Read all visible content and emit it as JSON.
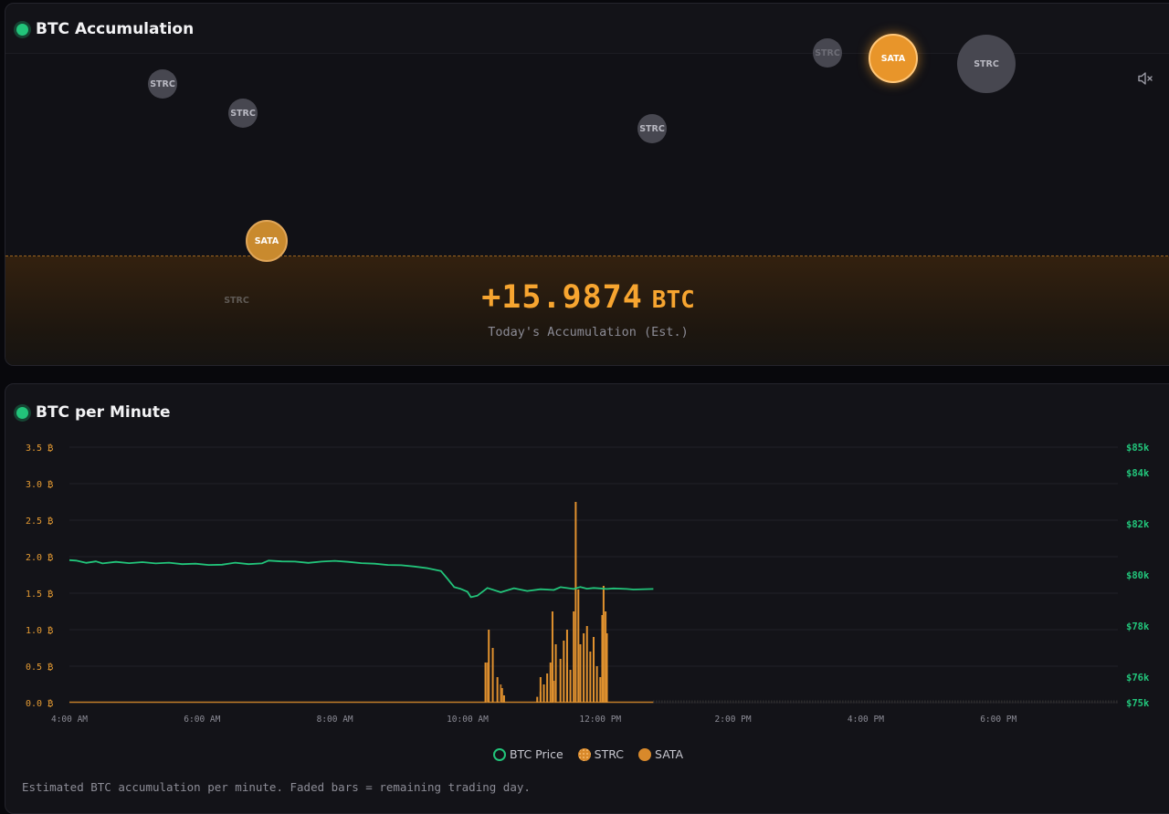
{
  "accumulation": {
    "title": "BTC Accumulation",
    "value": "+15.9874",
    "unit": "BTC",
    "label": "Today's Accumulation (Est.)",
    "bubbles": [
      {
        "label": "STRC",
        "kind": "strc"
      },
      {
        "label": "STRC",
        "kind": "strc"
      },
      {
        "label": "STRC",
        "kind": "strc"
      },
      {
        "label": "STRC",
        "kind": "strc"
      },
      {
        "label": "STRC",
        "kind": "strc"
      },
      {
        "label": "SATA",
        "kind": "sata"
      },
      {
        "label": "SATA",
        "kind": "sata"
      },
      {
        "label": "STRC",
        "kind": "ghost"
      }
    ]
  },
  "bpm": {
    "title": "BTC per Minute",
    "footnote": "Estimated BTC accumulation per minute. Faded bars = remaining trading day.",
    "legend": [
      "BTC Price",
      "STRC",
      "SATA"
    ]
  },
  "colors": {
    "accent_green": "#22c47a",
    "accent_orange": "#e59b33"
  },
  "chart_data": {
    "type": "bar",
    "title": "BTC per Minute",
    "y_left": {
      "ticks": [
        "0.0 ₿",
        "0.5 ₿",
        "1.0 ₿",
        "1.5 ₿",
        "2.0 ₿",
        "2.5 ₿",
        "3.0 ₿",
        "3.5 ₿"
      ],
      "ylim": [
        0,
        3.5
      ],
      "unit": "BTC"
    },
    "y_right": {
      "ticks": [
        "$75k",
        "$76k",
        "$78k",
        "$80k",
        "$82k",
        "$84k",
        "$85k"
      ],
      "ylim": [
        75000,
        85000
      ]
    },
    "x_axis": {
      "ticks": [
        "4:00 AM",
        "6:00 AM",
        "8:00 AM",
        "10:00 AM",
        "12:00 PM",
        "2:00 PM",
        "4:00 PM",
        "6:00 PM"
      ],
      "xlim_hours": [
        4,
        19.8
      ]
    },
    "grid": true,
    "legend_position": "bottom",
    "series": [
      {
        "name": "BTC Price",
        "kind": "line",
        "color": "#22c47a",
        "points": [
          [
            4.0,
            80580
          ],
          [
            4.1,
            80560
          ],
          [
            4.25,
            80470
          ],
          [
            4.4,
            80530
          ],
          [
            4.5,
            80450
          ],
          [
            4.7,
            80510
          ],
          [
            4.9,
            80460
          ],
          [
            5.1,
            80500
          ],
          [
            5.3,
            80450
          ],
          [
            5.5,
            80480
          ],
          [
            5.7,
            80420
          ],
          [
            5.9,
            80440
          ],
          [
            6.1,
            80390
          ],
          [
            6.3,
            80400
          ],
          [
            6.5,
            80480
          ],
          [
            6.7,
            80420
          ],
          [
            6.9,
            80450
          ],
          [
            7.0,
            80560
          ],
          [
            7.2,
            80530
          ],
          [
            7.4,
            80520
          ],
          [
            7.6,
            80470
          ],
          [
            7.8,
            80520
          ],
          [
            8.0,
            80550
          ],
          [
            8.2,
            80510
          ],
          [
            8.4,
            80460
          ],
          [
            8.6,
            80440
          ],
          [
            8.8,
            80390
          ],
          [
            9.0,
            80380
          ],
          [
            9.2,
            80330
          ],
          [
            9.4,
            80260
          ],
          [
            9.6,
            80150
          ],
          [
            9.7,
            79840
          ],
          [
            9.8,
            79520
          ],
          [
            9.9,
            79450
          ],
          [
            10.0,
            79340
          ],
          [
            10.05,
            79130
          ],
          [
            10.15,
            79190
          ],
          [
            10.3,
            79490
          ],
          [
            10.5,
            79320
          ],
          [
            10.7,
            79480
          ],
          [
            10.9,
            79370
          ],
          [
            11.1,
            79440
          ],
          [
            11.3,
            79410
          ],
          [
            11.4,
            79520
          ],
          [
            11.6,
            79450
          ],
          [
            11.7,
            79530
          ],
          [
            11.8,
            79460
          ],
          [
            11.9,
            79490
          ],
          [
            12.0,
            79470
          ],
          [
            12.1,
            79450
          ],
          [
            12.2,
            79470
          ],
          [
            12.4,
            79450
          ],
          [
            12.5,
            79430
          ],
          [
            12.8,
            79450
          ]
        ]
      },
      {
        "name": "STRC",
        "kind": "bar",
        "points": [
          [
            10.3,
            0.55
          ],
          [
            10.5,
            0.25
          ],
          [
            11.1,
            0.15
          ],
          [
            11.3,
            0.3
          ],
          [
            11.5,
            0.55
          ],
          [
            11.7,
            0.45
          ],
          [
            11.9,
            0.65
          ],
          [
            12.1,
            0.5
          ]
        ]
      },
      {
        "name": "SATA",
        "kind": "bar",
        "points": [
          [
            10.27,
            0.55
          ],
          [
            10.32,
            1.0
          ],
          [
            10.38,
            0.75
          ],
          [
            10.45,
            0.35
          ],
          [
            10.52,
            0.2
          ],
          [
            10.55,
            0.1
          ],
          [
            11.05,
            0.08
          ],
          [
            11.1,
            0.35
          ],
          [
            11.15,
            0.25
          ],
          [
            11.2,
            0.4
          ],
          [
            11.25,
            0.55
          ],
          [
            11.28,
            1.25
          ],
          [
            11.33,
            0.8
          ],
          [
            11.4,
            0.6
          ],
          [
            11.45,
            0.85
          ],
          [
            11.5,
            1.0
          ],
          [
            11.55,
            0.45
          ],
          [
            11.6,
            1.25
          ],
          [
            11.63,
            2.75
          ],
          [
            11.67,
            1.55
          ],
          [
            11.7,
            0.8
          ],
          [
            11.75,
            0.95
          ],
          [
            11.8,
            1.05
          ],
          [
            11.85,
            0.7
          ],
          [
            11.9,
            0.9
          ],
          [
            11.95,
            0.5
          ],
          [
            12.0,
            0.35
          ],
          [
            12.03,
            1.2
          ],
          [
            12.05,
            1.6
          ],
          [
            12.08,
            1.25
          ],
          [
            12.1,
            0.95
          ]
        ]
      }
    ]
  }
}
